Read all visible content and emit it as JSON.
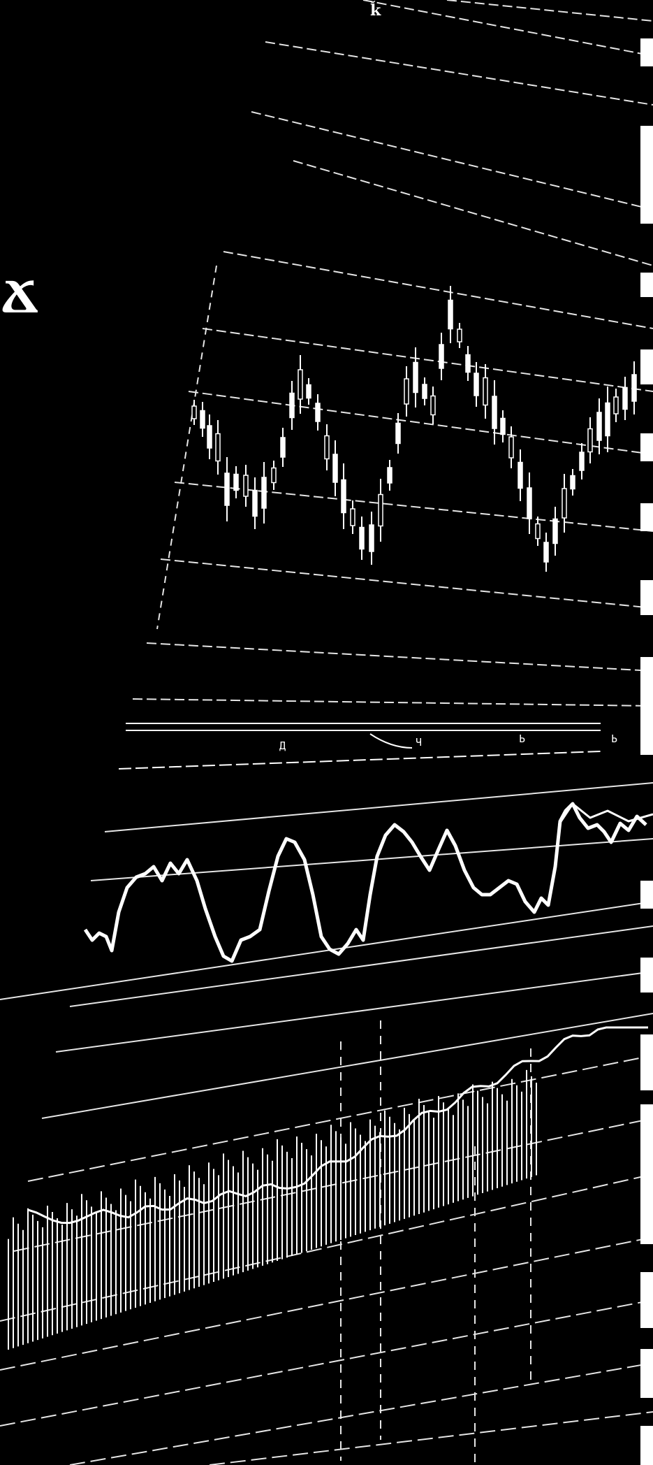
{
  "scene": {
    "background": "#000000",
    "ink": "#ffffff",
    "corner_glyph": "ǩ",
    "left_glyph": "Ճ",
    "marker_labels": [
      "Д",
      "Ч",
      "Ь",
      "Ь"
    ]
  },
  "right_strip": {
    "blocks": 16
  }
}
